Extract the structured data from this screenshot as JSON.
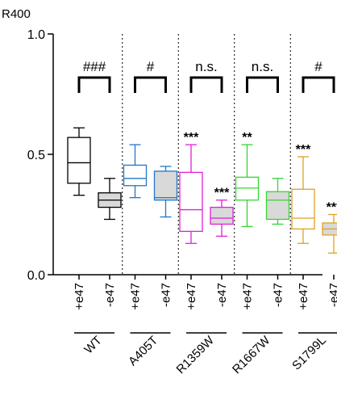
{
  "chart_data": {
    "type": "box",
    "ylabel": "R400",
    "ylim": [
      0.0,
      1.0
    ],
    "yticks": [
      "0.0",
      "0.5",
      "1.0"
    ],
    "grid": false,
    "groups": [
      {
        "name": "WT",
        "significance": "###"
      },
      {
        "name": "A405T",
        "significance": "#"
      },
      {
        "name": "R1359W",
        "significance": "n.s."
      },
      {
        "name": "R1667W",
        "significance": "n.s."
      },
      {
        "name": "S1799L",
        "significance": "#"
      }
    ],
    "boxes": [
      {
        "group": "WT",
        "condition": "+e47",
        "color": "#000000",
        "fill": "#ffffff",
        "min": 0.33,
        "q1": 0.38,
        "median": 0.465,
        "q3": 0.57,
        "max": 0.61,
        "marker": ""
      },
      {
        "group": "WT",
        "condition": "-e47",
        "color": "#000000",
        "fill": "#d9d9d9",
        "min": 0.23,
        "q1": 0.28,
        "median": 0.31,
        "q3": 0.34,
        "max": 0.4,
        "marker": ""
      },
      {
        "group": "A405T",
        "condition": "+e47",
        "color": "#1f78c8",
        "fill": "#ffffff",
        "min": 0.32,
        "q1": 0.37,
        "median": 0.4,
        "q3": 0.455,
        "max": 0.54,
        "marker": ""
      },
      {
        "group": "A405T",
        "condition": "-e47",
        "color": "#1f78c8",
        "fill": "#d9d9d9",
        "min": 0.24,
        "q1": 0.31,
        "median": 0.32,
        "q3": 0.43,
        "max": 0.45,
        "marker": ""
      },
      {
        "group": "R1359W",
        "condition": "+e47",
        "color": "#e020d8",
        "fill": "#ffffff",
        "min": 0.13,
        "q1": 0.18,
        "median": 0.27,
        "q3": 0.425,
        "max": 0.54,
        "marker": "***"
      },
      {
        "group": "R1359W",
        "condition": "-e47",
        "color": "#e020d8",
        "fill": "#d9d9d9",
        "min": 0.16,
        "q1": 0.21,
        "median": 0.235,
        "q3": 0.28,
        "max": 0.31,
        "marker": "***"
      },
      {
        "group": "R1667W",
        "condition": "+e47",
        "color": "#33d633",
        "fill": "#ffffff",
        "min": 0.2,
        "q1": 0.31,
        "median": 0.36,
        "q3": 0.405,
        "max": 0.54,
        "marker": "**"
      },
      {
        "group": "R1667W",
        "condition": "-e47",
        "color": "#33d633",
        "fill": "#d9d9d9",
        "min": 0.21,
        "q1": 0.23,
        "median": 0.31,
        "q3": 0.345,
        "max": 0.4,
        "marker": ""
      },
      {
        "group": "S1799L",
        "condition": "+e47",
        "color": "#e0a020",
        "fill": "#ffffff",
        "min": 0.13,
        "q1": 0.19,
        "median": 0.235,
        "q3": 0.355,
        "max": 0.49,
        "marker": "***"
      },
      {
        "group": "S1799L",
        "condition": "-e47",
        "color": "#e0a020",
        "fill": "#d9d9d9",
        "min": 0.09,
        "q1": 0.165,
        "median": 0.19,
        "q3": 0.215,
        "max": 0.25,
        "marker": "***"
      }
    ]
  }
}
